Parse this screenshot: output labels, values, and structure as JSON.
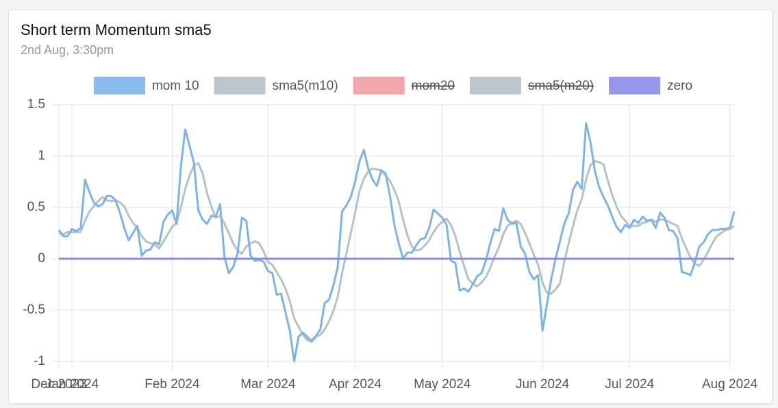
{
  "chart_data": {
    "type": "line",
    "title": "Short term Momentum sma5",
    "subtitle": "2nd Aug, 3:30pm",
    "xlim": [
      0,
      155
    ],
    "xticks": [
      {
        "value": 0,
        "label": "Dec 2023"
      },
      {
        "value": 3,
        "label": "Jan 2024"
      },
      {
        "value": 26,
        "label": "Feb 2024"
      },
      {
        "value": 48,
        "label": "Mar 2024"
      },
      {
        "value": 68,
        "label": "Apr 2024"
      },
      {
        "value": 88,
        "label": "May 2024"
      },
      {
        "value": 111,
        "label": "Jun 2024"
      },
      {
        "value": 131,
        "label": "Jul 2024"
      },
      {
        "value": 154,
        "label": "Aug 2024"
      }
    ],
    "ylim": [
      -1,
      1.5
    ],
    "yticks": [
      -1,
      -0.5,
      0,
      0.5,
      1,
      1.5
    ],
    "grid": true,
    "legend": "top",
    "series": [
      {
        "name": "mom 10",
        "color": "#7db4e8",
        "values": [
          0.28,
          0.22,
          0.22,
          0.29,
          0.27,
          0.3,
          0.77,
          0.65,
          0.55,
          0.51,
          0.53,
          0.61,
          0.61,
          0.57,
          0.45,
          0.3,
          0.18,
          0.25,
          0.32,
          0.03,
          0.08,
          0.09,
          0.16,
          0.14,
          0.36,
          0.43,
          0.47,
          0.34,
          0.9,
          1.26,
          1.1,
          0.93,
          0.47,
          0.38,
          0.34,
          0.42,
          0.41,
          0.53,
          0.02,
          -0.14,
          -0.08,
          0.05,
          0.4,
          0.37,
          0.03,
          -0.02,
          -0.01,
          -0.03,
          -0.12,
          -0.14,
          -0.35,
          -0.34,
          -0.52,
          -0.7,
          -1.0,
          -0.76,
          -0.72,
          -0.76,
          -0.8,
          -0.75,
          -0.69,
          -0.43,
          -0.4,
          -0.26,
          -0.08,
          0.46,
          0.52,
          0.6,
          0.75,
          0.95,
          1.06,
          0.88,
          0.77,
          0.71,
          0.86,
          0.83,
          0.61,
          0.33,
          0.15,
          0.0,
          0.06,
          0.06,
          0.13,
          0.19,
          0.2,
          0.3,
          0.48,
          0.44,
          0.4,
          0.33,
          -0.02,
          -0.04,
          -0.31,
          -0.29,
          -0.32,
          -0.25,
          -0.17,
          -0.14,
          -0.02,
          0.15,
          0.29,
          0.27,
          0.49,
          0.38,
          0.34,
          0.35,
          0.12,
          0.05,
          -0.13,
          -0.2,
          -0.16,
          -0.7,
          -0.45,
          -0.2,
          0.0,
          0.17,
          0.34,
          0.44,
          0.67,
          0.75,
          0.68,
          1.32,
          1.14,
          0.86,
          0.7,
          0.6,
          0.52,
          0.41,
          0.31,
          0.26,
          0.33,
          0.3,
          0.38,
          0.35,
          0.41,
          0.37,
          0.38,
          0.3,
          0.45,
          0.4,
          0.28,
          0.27,
          0.2,
          -0.13,
          -0.14,
          -0.16,
          -0.03,
          0.12,
          0.16,
          0.24,
          0.28,
          0.28,
          0.29,
          0.29,
          0.3,
          0.46
        ]
      },
      {
        "name": "sma5(m10)",
        "color": "#b6c0c6",
        "values": [
          0.25,
          0.24,
          0.26,
          0.26,
          0.26,
          0.26,
          0.37,
          0.46,
          0.51,
          0.56,
          0.6,
          0.57,
          0.56,
          0.57,
          0.55,
          0.51,
          0.42,
          0.35,
          0.3,
          0.22,
          0.17,
          0.15,
          0.14,
          0.1,
          0.17,
          0.24,
          0.31,
          0.35,
          0.5,
          0.68,
          0.81,
          0.91,
          0.93,
          0.83,
          0.64,
          0.51,
          0.4,
          0.42,
          0.34,
          0.25,
          0.15,
          0.08,
          0.05,
          0.12,
          0.15,
          0.17,
          0.15,
          0.07,
          -0.03,
          -0.06,
          -0.13,
          -0.2,
          -0.29,
          -0.41,
          -0.58,
          -0.66,
          -0.74,
          -0.79,
          -0.81,
          -0.76,
          -0.74,
          -0.69,
          -0.61,
          -0.51,
          -0.37,
          -0.14,
          0.05,
          0.25,
          0.45,
          0.66,
          0.78,
          0.85,
          0.88,
          0.87,
          0.86,
          0.81,
          0.76,
          0.67,
          0.56,
          0.38,
          0.23,
          0.12,
          0.08,
          0.09,
          0.13,
          0.18,
          0.26,
          0.32,
          0.36,
          0.39,
          0.33,
          0.22,
          0.07,
          -0.07,
          -0.2,
          -0.24,
          -0.27,
          -0.23,
          -0.18,
          -0.09,
          0.02,
          0.11,
          0.24,
          0.32,
          0.35,
          0.37,
          0.34,
          0.25,
          0.15,
          0.04,
          -0.06,
          -0.23,
          -0.33,
          -0.34,
          -0.3,
          -0.24,
          -0.03,
          0.15,
          0.32,
          0.47,
          0.58,
          0.77,
          0.91,
          0.95,
          0.94,
          0.92,
          0.76,
          0.62,
          0.51,
          0.42,
          0.37,
          0.32,
          0.32,
          0.32,
          0.35,
          0.36,
          0.38,
          0.36,
          0.38,
          0.38,
          0.36,
          0.34,
          0.32,
          0.2,
          0.1,
          0.01,
          -0.05,
          -0.07,
          -0.01,
          0.07,
          0.15,
          0.22,
          0.25,
          0.28,
          0.29,
          0.32
        ]
      },
      {
        "name": "mom20",
        "color": "#f09ca0",
        "hidden": true
      },
      {
        "name": "sma5(m20)",
        "color": "#b6c0c6",
        "hidden": true
      },
      {
        "name": "zero",
        "color": "#8a89e8",
        "values": [
          0,
          0,
          0,
          0,
          0,
          0,
          0,
          0,
          0,
          0,
          0,
          0,
          0,
          0,
          0,
          0,
          0,
          0,
          0,
          0,
          0,
          0,
          0,
          0,
          0,
          0,
          0,
          0,
          0,
          0,
          0,
          0,
          0,
          0,
          0,
          0,
          0,
          0,
          0,
          0,
          0,
          0,
          0,
          0,
          0,
          0,
          0,
          0,
          0,
          0,
          0,
          0,
          0,
          0,
          0,
          0,
          0,
          0,
          0,
          0,
          0,
          0,
          0,
          0,
          0,
          0,
          0,
          0,
          0,
          0,
          0,
          0,
          0,
          0,
          0,
          0,
          0,
          0,
          0,
          0,
          0,
          0,
          0,
          0,
          0,
          0,
          0,
          0,
          0,
          0,
          0,
          0,
          0,
          0,
          0,
          0,
          0,
          0,
          0,
          0,
          0,
          0,
          0,
          0,
          0,
          0,
          0,
          0,
          0,
          0,
          0,
          0,
          0,
          0,
          0,
          0,
          0,
          0,
          0,
          0,
          0,
          0,
          0,
          0,
          0,
          0,
          0,
          0,
          0,
          0,
          0,
          0,
          0,
          0,
          0,
          0,
          0,
          0,
          0,
          0,
          0,
          0,
          0,
          0,
          0,
          0,
          0,
          0,
          0,
          0,
          0,
          0,
          0,
          0,
          0,
          0
        ]
      }
    ]
  }
}
